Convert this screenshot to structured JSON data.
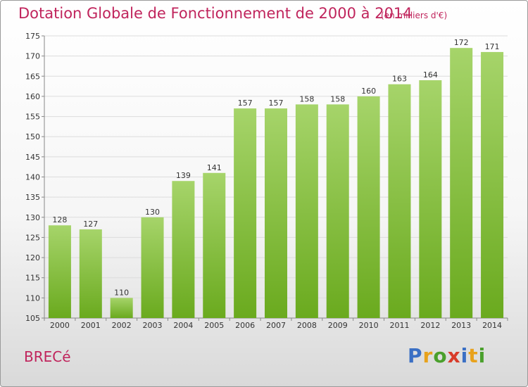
{
  "header": {
    "title": "Dotation Globale de Fonctionnement de 2000 à 2014",
    "subtitle": "(en milliers d'€)"
  },
  "footer": {
    "commune": "BRECé",
    "brand_letters": [
      {
        "ch": "P",
        "color": "#3a6fc4"
      },
      {
        "ch": "r",
        "color": "#e8a21c"
      },
      {
        "ch": "o",
        "color": "#4aa02c"
      },
      {
        "ch": "x",
        "color": "#d83b2a"
      },
      {
        "ch": "i",
        "color": "#3a6fc4"
      },
      {
        "ch": "t",
        "color": "#e8a21c"
      },
      {
        "ch": "i",
        "color": "#4aa02c"
      }
    ]
  },
  "colors": {
    "bar_top": "#a6d46a",
    "bar_bottom": "#6aaa1e",
    "accent": "#c0245c"
  },
  "chart_data": {
    "type": "bar",
    "title": "Dotation Globale de Fonctionnement de 2000 à 2014",
    "subtitle": "(en milliers d'€)",
    "categories": [
      "2000",
      "2001",
      "2002",
      "2003",
      "2004",
      "2005",
      "2006",
      "2007",
      "2008",
      "2009",
      "2010",
      "2011",
      "2012",
      "2013",
      "2014"
    ],
    "values": [
      128,
      127,
      110,
      130,
      139,
      141,
      157,
      157,
      158,
      158,
      160,
      163,
      164,
      172,
      171
    ],
    "xlabel": "",
    "ylabel": "",
    "ylim": [
      105,
      175
    ],
    "yticks": [
      105,
      110,
      115,
      120,
      125,
      130,
      135,
      140,
      145,
      150,
      155,
      160,
      165,
      170,
      175
    ],
    "grid": true,
    "data_labels": true
  }
}
